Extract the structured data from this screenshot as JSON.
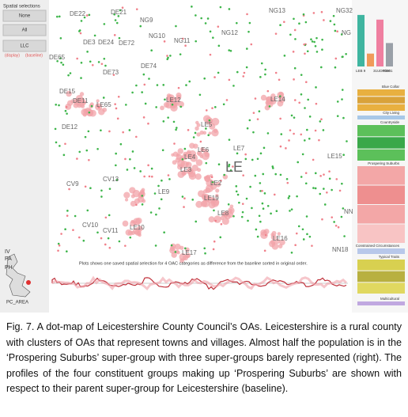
{
  "panel": {
    "title": "Spatial selections",
    "buttons": [
      "None",
      "All",
      "LLC"
    ],
    "display": "(display)",
    "baseline": "(baseline)"
  },
  "map": {
    "labels": [
      "DE22",
      "DE21",
      "NG9",
      "NG13",
      "NG32",
      "NG10",
      "NG11",
      "NG12",
      "DE3",
      "DE24",
      "DE72",
      "NG",
      "DE65",
      "DE73",
      "DE74",
      "DE15",
      "DE11",
      "LE12",
      "LE14",
      "LE65",
      "DE12",
      "LE5",
      "LE7",
      "LE6",
      "LE15",
      "LE4",
      "LE",
      "CV9",
      "CV13",
      "LE3",
      "LE2",
      "LE9",
      "LE19",
      "LE8",
      "NN",
      "CV10",
      "CV11",
      "LE10",
      "LE16",
      "NN18",
      "LE17"
    ],
    "inset_labels": [
      "IV",
      "PH",
      "PA",
      "PC_AREA"
    ],
    "note": "Plots shows one saved spatial selection for 4 OAC categories as difference from the baseline sorted in original order."
  },
  "chart_data": {
    "type": "bar",
    "categories": [
      "LEB 9",
      null,
      "31UDP0001",
      "Glen"
    ],
    "values": [
      88,
      22,
      80,
      40
    ],
    "colors": [
      "#3fb5a0",
      "#f09a5a",
      "#ef7fa0",
      "#9aa0a8"
    ],
    "ylim": [
      0,
      100
    ]
  },
  "groups": [
    "Blue Collar",
    "City Living",
    "Countryside",
    "Prospering Suburbs",
    "Constrained Circumstances",
    "Typical Traits",
    "Multicultural"
  ],
  "caption": "Fig. 7.  A dot-map of Leicestershire County Council’s OAs.  Leicestershire is a rural county with clusters of OAs that represent towns and villages. Almost half the population is in the ‘Prospering Suburbs’ super-group with three super-groups barely represented (right). The profiles of the four constituent groups making up ‘Prospering Suburbs’ are shown with respect to their parent super-group for Leicestershire (baseline)."
}
